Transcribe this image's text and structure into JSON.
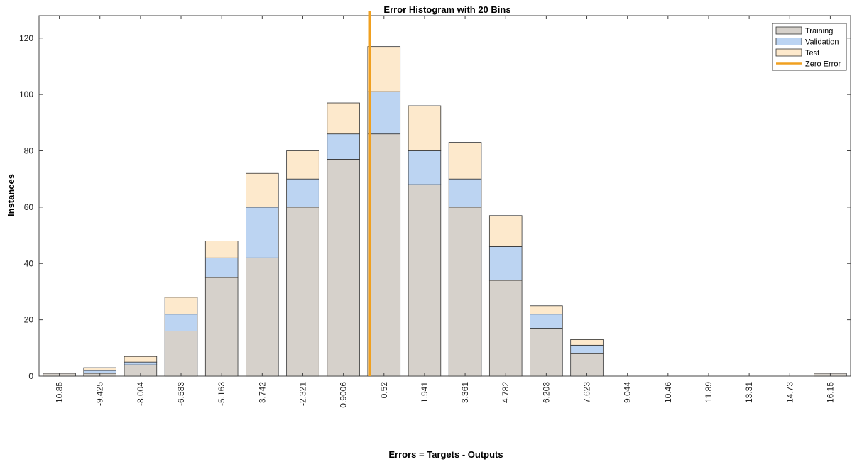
{
  "chart_data": {
    "type": "bar",
    "stacked": true,
    "title": "Error Histogram with 20 Bins",
    "xlabel": "Errors = Targets - Outputs",
    "ylabel": "Instances",
    "categories": [
      "-10.85",
      "-9.425",
      "-8.004",
      "-6.583",
      "-5.163",
      "-3.742",
      "-2.321",
      "-0.9006",
      "0.52",
      "1.941",
      "3.361",
      "4.782",
      "6.203",
      "7.623",
      "9.044",
      "10.46",
      "11.89",
      "13.31",
      "14.73",
      "16.15"
    ],
    "series": [
      {
        "name": "Training",
        "color": "#d6d1cb",
        "values": [
          1,
          1,
          4,
          16,
          35,
          42,
          60,
          77,
          86,
          68,
          60,
          34,
          17,
          8,
          0,
          0,
          0,
          0,
          0,
          1
        ]
      },
      {
        "name": "Validation",
        "color": "#bcd4f2",
        "values": [
          0,
          1,
          1,
          6,
          7,
          18,
          10,
          9,
          15,
          12,
          10,
          12,
          5,
          3,
          0,
          0,
          0,
          0,
          0,
          0
        ]
      },
      {
        "name": "Test",
        "color": "#fde9cc",
        "values": [
          0,
          1,
          2,
          6,
          6,
          12,
          10,
          11,
          16,
          16,
          13,
          11,
          3,
          2,
          0,
          0,
          0,
          0,
          0,
          0
        ]
      }
    ],
    "zero_error": {
      "name": "Zero Error",
      "color": "#f0a020",
      "x_between": [
        "-0.9006",
        "0.52"
      ],
      "fraction": 0.65
    },
    "ylim": [
      0,
      128
    ],
    "yticks": [
      0,
      20,
      40,
      60,
      80,
      100,
      120
    ],
    "legend_position": "top-right",
    "grid": false
  }
}
